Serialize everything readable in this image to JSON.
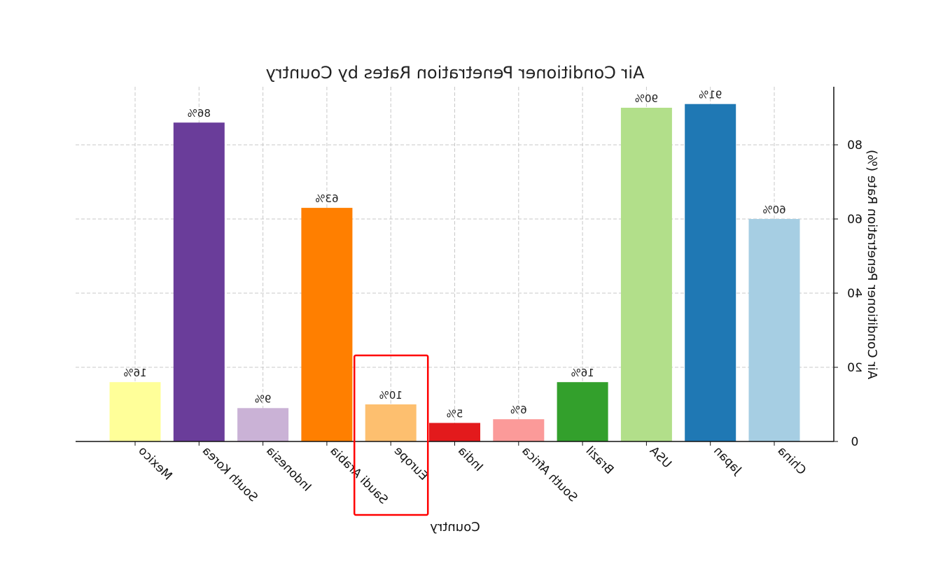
{
  "chart_data": {
    "type": "bar",
    "mirrored": true,
    "title": "Air Conditioner Penetration Rates by Country",
    "xlabel": "Country",
    "ylabel": "Air Conditioner Penetration Rate (%)",
    "ylim": [
      0,
      95
    ],
    "yticks": [
      0,
      20,
      40,
      60,
      80
    ],
    "grid": true,
    "categories": [
      "China",
      "Japan",
      "USA",
      "Brazil",
      "South Africa",
      "India",
      "Europe",
      "Saudi Arabia",
      "Indonesia",
      "South Korea",
      "Mexico"
    ],
    "values": [
      60,
      91,
      90,
      16,
      6,
      5,
      10,
      63,
      9,
      86,
      16
    ],
    "value_labels": [
      "60%",
      "91%",
      "90%",
      "16%",
      "6%",
      "5%",
      "10%",
      "63%",
      "9%",
      "86%",
      "16%"
    ],
    "colors": [
      "#a6cee3",
      "#1f78b4",
      "#b2df8a",
      "#33a02c",
      "#fb9a99",
      "#e31a1c",
      "#fdbf6f",
      "#ff7f00",
      "#cab2d6",
      "#6a3d9a",
      "#ffff99"
    ],
    "highlight": {
      "category": "Europe",
      "color": "#ff0000"
    }
  }
}
